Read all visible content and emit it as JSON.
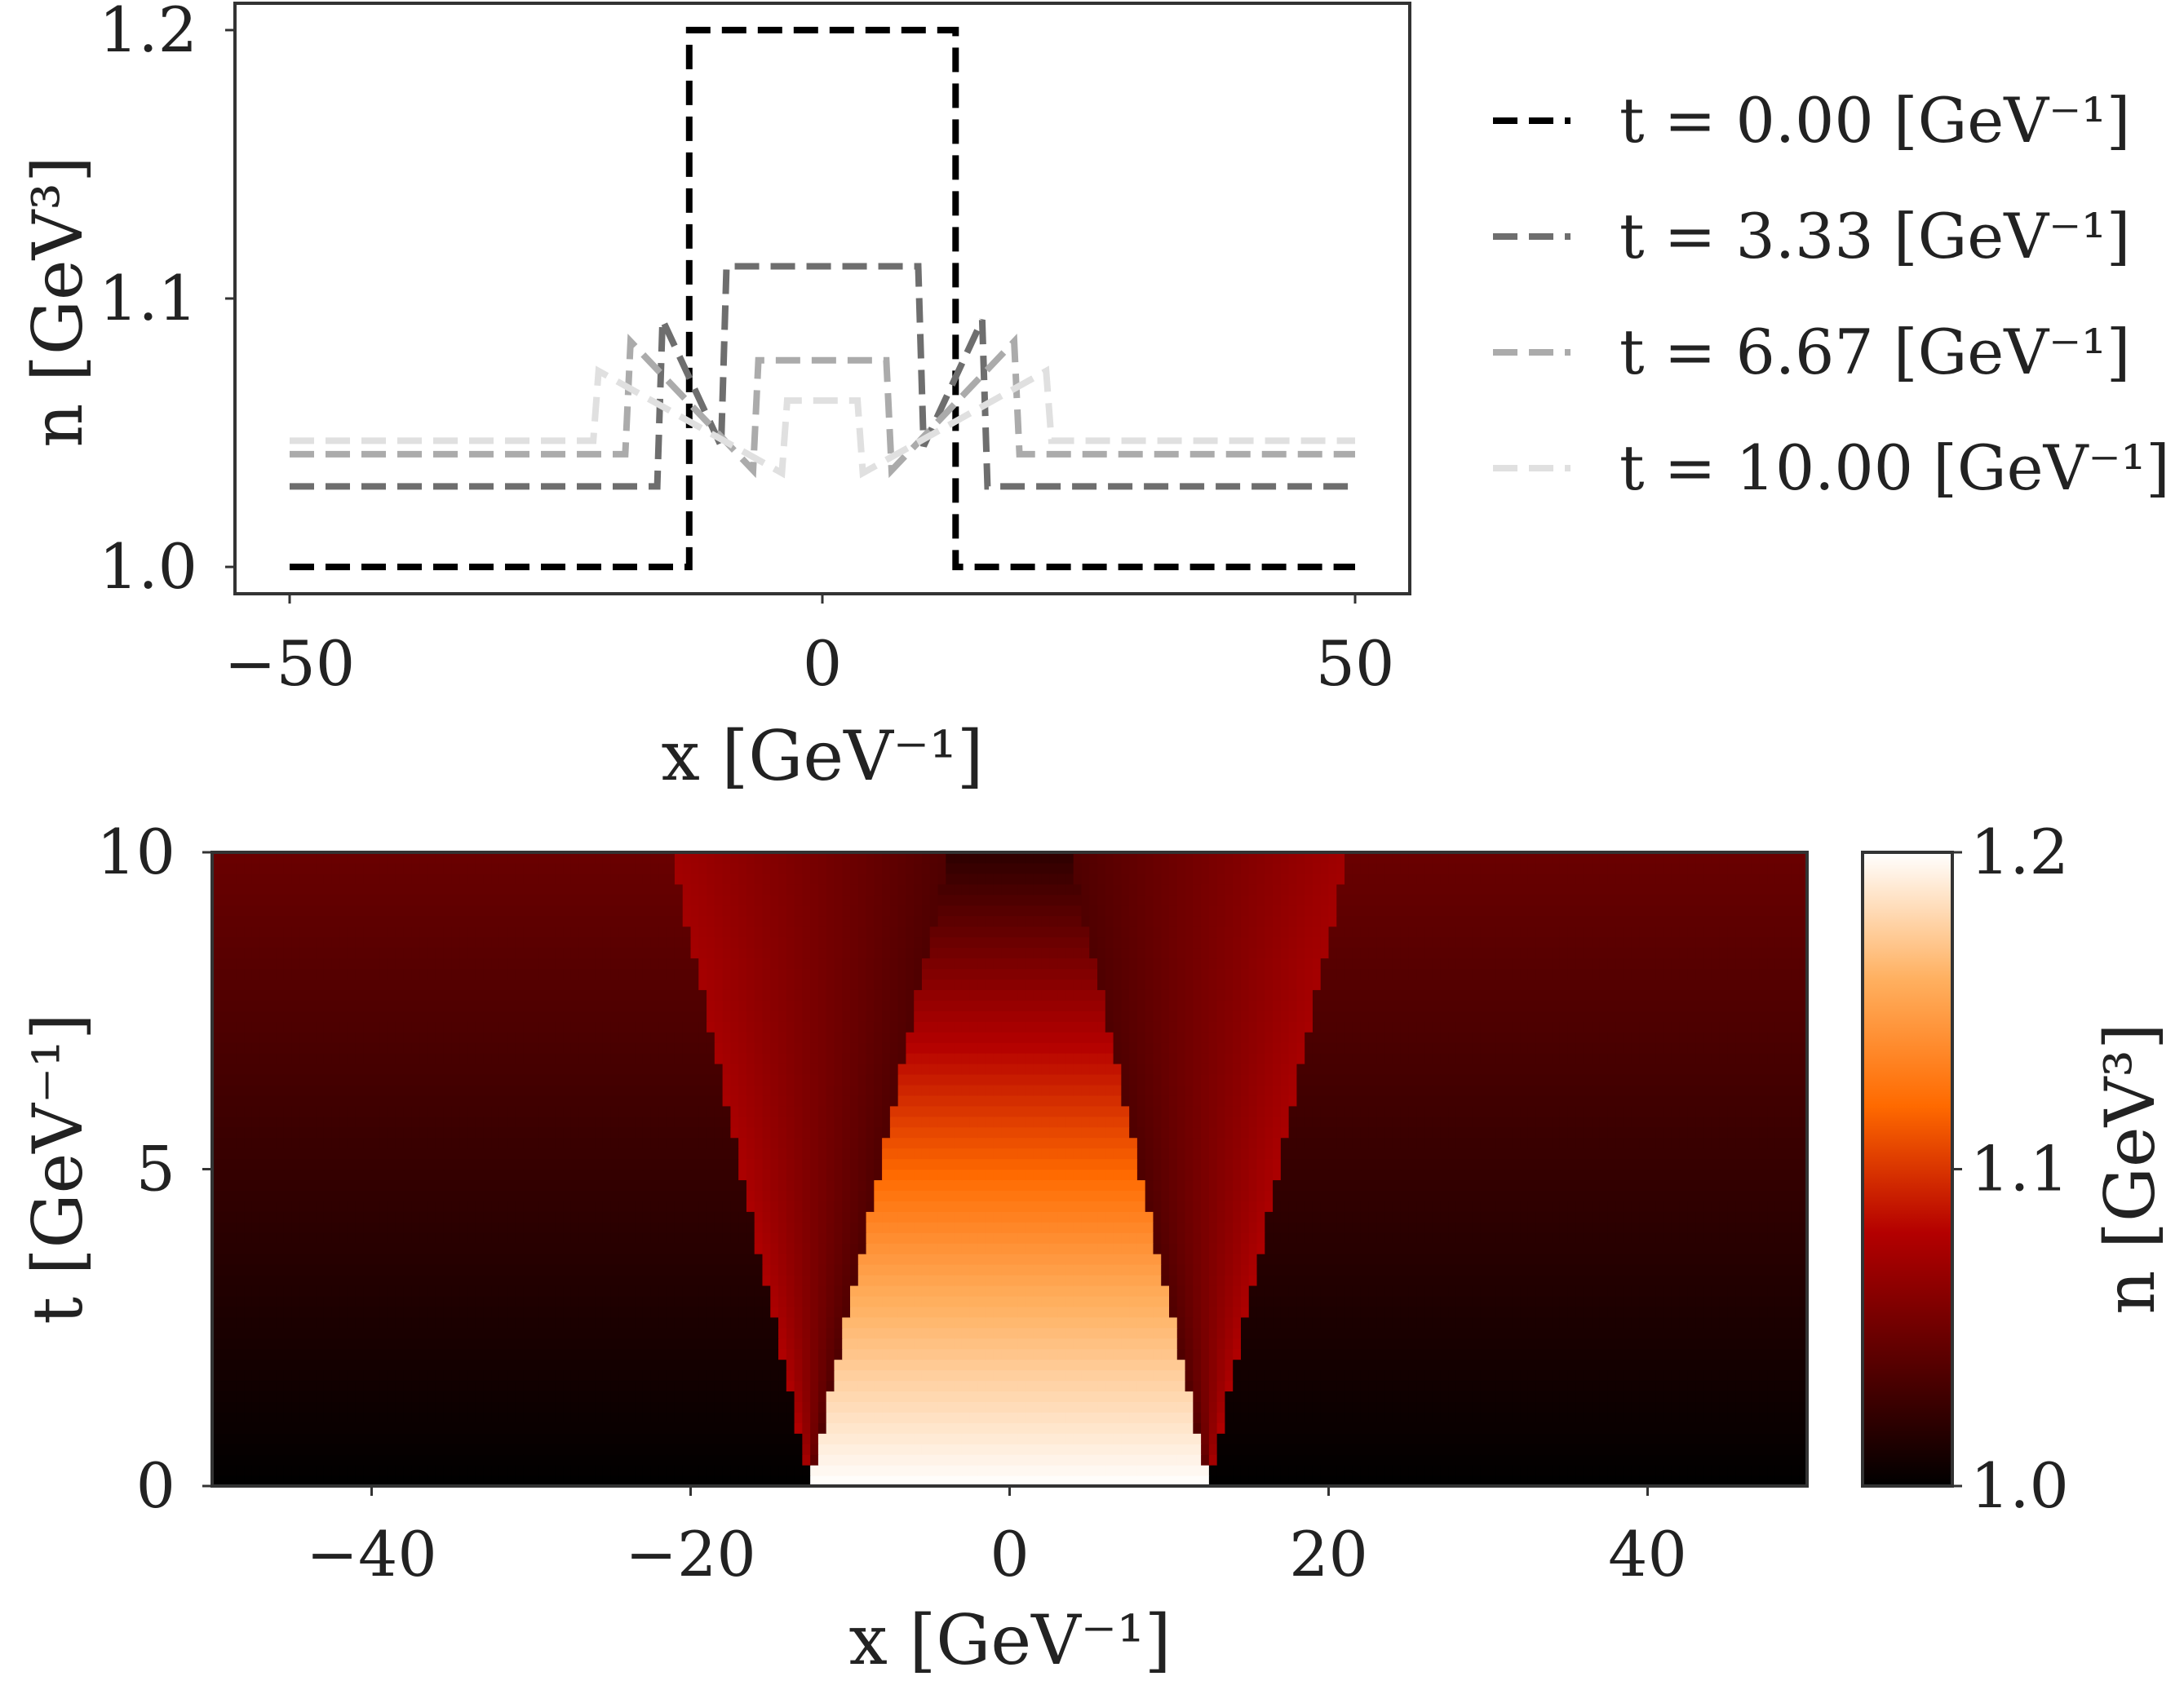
{
  "chart_data": [
    {
      "type": "line",
      "name": "density-profiles",
      "x_range": [
        -50,
        50
      ],
      "ylim": [
        0.99,
        1.21
      ],
      "xticks": [
        {
          "value": -50,
          "label": "−50"
        },
        {
          "value": 0,
          "label": "0"
        },
        {
          "value": 50,
          "label": "50"
        }
      ],
      "yticks": [
        {
          "value": 1.0,
          "label": "1.0"
        },
        {
          "value": 1.1,
          "label": "1.1"
        },
        {
          "value": 1.2,
          "label": "1.2"
        }
      ],
      "xlabel": "x [GeV⁻¹]",
      "ylabel": "n [GeV³]",
      "legend_position": "right",
      "series": [
        {
          "name": "t = 0.00 [GeV⁻¹]",
          "color": "#000000",
          "points": [
            [
              -50,
              1.0
            ],
            [
              -12.5,
              1.0
            ],
            [
              -12.5,
              1.2
            ],
            [
              12.5,
              1.2
            ],
            [
              12.5,
              1.0
            ],
            [
              50,
              1.0
            ]
          ]
        },
        {
          "name": "t = 3.33 [GeV⁻¹]",
          "color": "#6e6e6e",
          "points": [
            [
              -50,
              1.03
            ],
            [
              -15.5,
              1.03
            ],
            [
              -15.0,
              1.092
            ],
            [
              -9.5,
              1.045
            ],
            [
              -9.0,
              1.112
            ],
            [
              9.0,
              1.112
            ],
            [
              9.5,
              1.045
            ],
            [
              15.0,
              1.092
            ],
            [
              15.5,
              1.03
            ],
            [
              50,
              1.03
            ]
          ]
        },
        {
          "name": "t = 6.67 [GeV⁻¹]",
          "color": "#ababab",
          "points": [
            [
              -50,
              1.042
            ],
            [
              -18.5,
              1.042
            ],
            [
              -18.0,
              1.084
            ],
            [
              -6.5,
              1.036
            ],
            [
              -6.0,
              1.077
            ],
            [
              6.0,
              1.077
            ],
            [
              6.5,
              1.036
            ],
            [
              18.0,
              1.084
            ],
            [
              18.5,
              1.042
            ],
            [
              50,
              1.042
            ]
          ]
        },
        {
          "name": "t = 10.00 [GeV⁻¹]",
          "color": "#e0e0e0",
          "points": [
            [
              -50,
              1.047
            ],
            [
              -21.5,
              1.047
            ],
            [
              -21.0,
              1.073
            ],
            [
              -3.8,
              1.035
            ],
            [
              -3.3,
              1.062
            ],
            [
              3.3,
              1.062
            ],
            [
              3.8,
              1.035
            ],
            [
              21.0,
              1.073
            ],
            [
              21.5,
              1.047
            ],
            [
              50,
              1.047
            ]
          ]
        }
      ]
    },
    {
      "type": "heatmap",
      "name": "density-spacetime",
      "x_range": [
        -50,
        50
      ],
      "t_range": [
        0,
        10
      ],
      "xticks": [
        {
          "value": -40,
          "label": "−40"
        },
        {
          "value": -20,
          "label": "−20"
        },
        {
          "value": 0,
          "label": "0"
        },
        {
          "value": 20,
          "label": "20"
        },
        {
          "value": 40,
          "label": "40"
        }
      ],
      "yticks": [
        {
          "value": 0,
          "label": "0"
        },
        {
          "value": 5,
          "label": "5"
        },
        {
          "value": 10,
          "label": "10"
        }
      ],
      "xlabel": "x [GeV⁻¹]",
      "ylabel": "t [GeV⁻¹]",
      "colorbar": {
        "label": "n [GeV³]",
        "range": [
          1.0,
          1.2
        ],
        "ticks": [
          {
            "value": 1.0,
            "label": "1.0"
          },
          {
            "value": 1.1,
            "label": "1.1"
          },
          {
            "value": 1.2,
            "label": "1.2"
          }
        ],
        "colormap": [
          "#000000",
          "#5a0000",
          "#b40000",
          "#ff6a00",
          "#ffb060",
          "#ffffff"
        ]
      },
      "regions": {
        "initial_step_halfwidth": 12.5,
        "outer_shock_speed": 0.87,
        "inner_edge_speed": 0.87
      }
    }
  ]
}
